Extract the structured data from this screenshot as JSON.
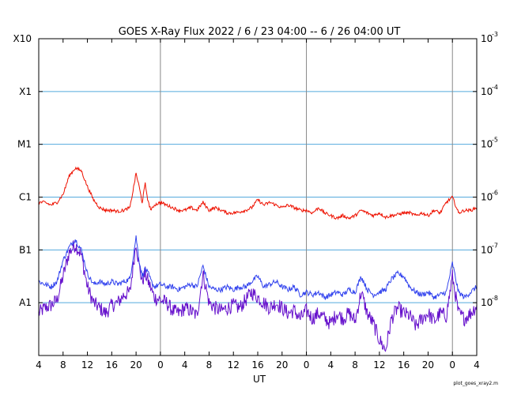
{
  "chart_data": {
    "type": "line",
    "title": "GOES X-Ray Flux   2022 /  6 / 23   04:00 --  6 / 26   04:00   UT",
    "xlabel": "UT",
    "footer": "plot_goes_xray2.m",
    "x_range_hours": [
      0,
      72
    ],
    "x_ticks": [
      {
        "h": 0,
        "label": "4"
      },
      {
        "h": 4,
        "label": "8"
      },
      {
        "h": 8,
        "label": "12"
      },
      {
        "h": 12,
        "label": "16"
      },
      {
        "h": 16,
        "label": "20"
      },
      {
        "h": 20,
        "label": "0"
      },
      {
        "h": 24,
        "label": "4"
      },
      {
        "h": 28,
        "label": "8"
      },
      {
        "h": 32,
        "label": "12"
      },
      {
        "h": 36,
        "label": "16"
      },
      {
        "h": 40,
        "label": "20"
      },
      {
        "h": 44,
        "label": "0"
      },
      {
        "h": 48,
        "label": "4"
      },
      {
        "h": 52,
        "label": "8"
      },
      {
        "h": 56,
        "label": "12"
      },
      {
        "h": 60,
        "label": "16"
      },
      {
        "h": 64,
        "label": "20"
      },
      {
        "h": 68,
        "label": "0"
      },
      {
        "h": 72,
        "label": "4"
      }
    ],
    "day_boundaries_hours": [
      20,
      44,
      68
    ],
    "y_scale": "log",
    "y_range_log10": [
      -9,
      -3
    ],
    "left_ticks": [
      {
        "log": -8,
        "label": "A1"
      },
      {
        "log": -7,
        "label": "B1"
      },
      {
        "log": -6,
        "label": "C1"
      },
      {
        "log": -5,
        "label": "M1"
      },
      {
        "log": -4,
        "label": "X1"
      },
      {
        "log": -3,
        "label": "X10"
      }
    ],
    "right_ticks": [
      {
        "log": -8,
        "base": "10",
        "exp": "-8"
      },
      {
        "log": -7,
        "base": "10",
        "exp": "-7"
      },
      {
        "log": -6,
        "base": "10",
        "exp": "-6"
      },
      {
        "log": -5,
        "base": "10",
        "exp": "-5"
      },
      {
        "log": -4,
        "base": "10",
        "exp": "-4"
      },
      {
        "log": -3,
        "base": "10",
        "exp": "-3"
      }
    ],
    "grid_levels_log10": [
      -8,
      -7,
      -6,
      -5,
      -4
    ],
    "colors": {
      "long": "#ee1100",
      "short": "#3344ee",
      "short_low": "#6611cc",
      "grid": "#55aadd",
      "day_line": "#888888"
    },
    "series": [
      {
        "key": "long",
        "points": [
          [
            0,
            -6.1
          ],
          [
            1,
            -6.1
          ],
          [
            2,
            -6.15
          ],
          [
            3,
            -6.1
          ],
          [
            4,
            -5.95
          ],
          [
            5,
            -5.6
          ],
          [
            6,
            -5.45
          ],
          [
            7,
            -5.5
          ],
          [
            8,
            -5.8
          ],
          [
            9,
            -6.05
          ],
          [
            10,
            -6.2
          ],
          [
            11,
            -6.25
          ],
          [
            12,
            -6.25
          ],
          [
            13,
            -6.27
          ],
          [
            14,
            -6.25
          ],
          [
            15,
            -6.2
          ],
          [
            16,
            -5.55
          ],
          [
            16.5,
            -5.8
          ],
          [
            17,
            -6.1
          ],
          [
            17.5,
            -5.75
          ],
          [
            18,
            -6.1
          ],
          [
            18.5,
            -6.25
          ],
          [
            19,
            -6.15
          ],
          [
            20,
            -6.1
          ],
          [
            21,
            -6.15
          ],
          [
            22,
            -6.2
          ],
          [
            23,
            -6.25
          ],
          [
            24,
            -6.25
          ],
          [
            25,
            -6.2
          ],
          [
            26,
            -6.25
          ],
          [
            27,
            -6.1
          ],
          [
            28,
            -6.25
          ],
          [
            29,
            -6.2
          ],
          [
            30,
            -6.25
          ],
          [
            31,
            -6.3
          ],
          [
            32,
            -6.3
          ],
          [
            33,
            -6.28
          ],
          [
            34,
            -6.25
          ],
          [
            35,
            -6.2
          ],
          [
            36,
            -6.05
          ],
          [
            37,
            -6.15
          ],
          [
            38,
            -6.1
          ],
          [
            39,
            -6.15
          ],
          [
            40,
            -6.2
          ],
          [
            41,
            -6.15
          ],
          [
            42,
            -6.2
          ],
          [
            43,
            -6.25
          ],
          [
            44,
            -6.25
          ],
          [
            45,
            -6.3
          ],
          [
            46,
            -6.2
          ],
          [
            47,
            -6.3
          ],
          [
            48,
            -6.35
          ],
          [
            49,
            -6.4
          ],
          [
            50,
            -6.35
          ],
          [
            51,
            -6.4
          ],
          [
            52,
            -6.35
          ],
          [
            53,
            -6.25
          ],
          [
            54,
            -6.3
          ],
          [
            55,
            -6.35
          ],
          [
            56,
            -6.3
          ],
          [
            57,
            -6.38
          ],
          [
            58,
            -6.35
          ],
          [
            59,
            -6.33
          ],
          [
            60,
            -6.3
          ],
          [
            61,
            -6.3
          ],
          [
            62,
            -6.35
          ],
          [
            63,
            -6.3
          ],
          [
            64,
            -6.35
          ],
          [
            65,
            -6.25
          ],
          [
            66,
            -6.3
          ],
          [
            67,
            -6.1
          ],
          [
            68,
            -6.0
          ],
          [
            69,
            -6.3
          ],
          [
            70,
            -6.25
          ],
          [
            71,
            -6.25
          ],
          [
            72,
            -6.2
          ]
        ]
      },
      {
        "key": "short",
        "points": [
          [
            0,
            -7.6
          ],
          [
            1,
            -7.65
          ],
          [
            2,
            -7.7
          ],
          [
            3,
            -7.6
          ],
          [
            4,
            -7.2
          ],
          [
            5,
            -6.95
          ],
          [
            6,
            -6.8
          ],
          [
            7,
            -7.0
          ],
          [
            8,
            -7.45
          ],
          [
            9,
            -7.65
          ],
          [
            10,
            -7.6
          ],
          [
            11,
            -7.65
          ],
          [
            12,
            -7.6
          ],
          [
            13,
            -7.65
          ],
          [
            14,
            -7.6
          ],
          [
            15,
            -7.55
          ],
          [
            16,
            -6.75
          ],
          [
            16.5,
            -7.2
          ],
          [
            17,
            -7.5
          ],
          [
            17.5,
            -7.35
          ],
          [
            18,
            -7.45
          ],
          [
            18.5,
            -7.6
          ],
          [
            19,
            -7.7
          ],
          [
            20,
            -7.65
          ],
          [
            21,
            -7.7
          ],
          [
            22,
            -7.7
          ],
          [
            23,
            -7.75
          ],
          [
            24,
            -7.7
          ],
          [
            25,
            -7.65
          ],
          [
            26,
            -7.7
          ],
          [
            27,
            -7.3
          ],
          [
            28,
            -7.7
          ],
          [
            29,
            -7.75
          ],
          [
            30,
            -7.75
          ],
          [
            31,
            -7.7
          ],
          [
            32,
            -7.75
          ],
          [
            33,
            -7.7
          ],
          [
            34,
            -7.7
          ],
          [
            35,
            -7.6
          ],
          [
            36,
            -7.5
          ],
          [
            37,
            -7.7
          ],
          [
            38,
            -7.65
          ],
          [
            39,
            -7.6
          ],
          [
            40,
            -7.7
          ],
          [
            41,
            -7.75
          ],
          [
            42,
            -7.7
          ],
          [
            43,
            -7.85
          ],
          [
            44,
            -7.8
          ],
          [
            45,
            -7.85
          ],
          [
            46,
            -7.8
          ],
          [
            47,
            -7.9
          ],
          [
            48,
            -7.85
          ],
          [
            49,
            -7.8
          ],
          [
            50,
            -7.85
          ],
          [
            51,
            -7.75
          ],
          [
            52,
            -7.8
          ],
          [
            53,
            -7.5
          ],
          [
            54,
            -7.75
          ],
          [
            55,
            -7.85
          ],
          [
            56,
            -7.8
          ],
          [
            57,
            -7.75
          ],
          [
            58,
            -7.55
          ],
          [
            59,
            -7.45
          ],
          [
            60,
            -7.5
          ],
          [
            61,
            -7.7
          ],
          [
            62,
            -7.8
          ],
          [
            63,
            -7.85
          ],
          [
            64,
            -7.8
          ],
          [
            65,
            -7.9
          ],
          [
            66,
            -7.85
          ],
          [
            67,
            -7.8
          ],
          [
            68,
            -7.25
          ],
          [
            69,
            -7.8
          ],
          [
            70,
            -7.9
          ],
          [
            71,
            -7.8
          ],
          [
            72,
            -7.7
          ]
        ]
      },
      {
        "key": "short_low",
        "points": [
          [
            0,
            -8.2
          ],
          [
            1,
            -8.1
          ],
          [
            2,
            -8.05
          ],
          [
            3,
            -7.95
          ],
          [
            4,
            -7.5
          ],
          [
            5,
            -7.05
          ],
          [
            6,
            -6.9
          ],
          [
            7,
            -7.1
          ],
          [
            8,
            -7.7
          ],
          [
            9,
            -8.0
          ],
          [
            10,
            -8.1
          ],
          [
            11,
            -8.2
          ],
          [
            12,
            -8.05
          ],
          [
            13,
            -8.0
          ],
          [
            14,
            -7.85
          ],
          [
            15,
            -7.8
          ],
          [
            16,
            -6.85
          ],
          [
            16.5,
            -7.3
          ],
          [
            17,
            -7.6
          ],
          [
            17.5,
            -7.45
          ],
          [
            18,
            -7.6
          ],
          [
            18.5,
            -7.75
          ],
          [
            19,
            -7.9
          ],
          [
            20,
            -7.95
          ],
          [
            21,
            -8.0
          ],
          [
            22,
            -8.15
          ],
          [
            23,
            -8.2
          ],
          [
            24,
            -8.1
          ],
          [
            25,
            -8.15
          ],
          [
            26,
            -8.25
          ],
          [
            27,
            -7.45
          ],
          [
            28,
            -8.0
          ],
          [
            29,
            -8.1
          ],
          [
            30,
            -8.15
          ],
          [
            31,
            -8.1
          ],
          [
            32,
            -8.05
          ],
          [
            33,
            -8.1
          ],
          [
            34,
            -7.95
          ],
          [
            35,
            -7.8
          ],
          [
            36,
            -7.9
          ],
          [
            37,
            -8.0
          ],
          [
            38,
            -8.1
          ],
          [
            39,
            -8.0
          ],
          [
            40,
            -8.1
          ],
          [
            41,
            -8.2
          ],
          [
            42,
            -8.15
          ],
          [
            43,
            -8.3
          ],
          [
            44,
            -8.15
          ],
          [
            45,
            -8.3
          ],
          [
            46,
            -8.2
          ],
          [
            47,
            -8.3
          ],
          [
            48,
            -8.4
          ],
          [
            49,
            -8.2
          ],
          [
            50,
            -8.3
          ],
          [
            51,
            -8.2
          ],
          [
            52,
            -8.35
          ],
          [
            53,
            -7.8
          ],
          [
            54,
            -8.2
          ],
          [
            55,
            -8.4
          ],
          [
            56,
            -8.7
          ],
          [
            57,
            -8.9
          ],
          [
            58,
            -8.3
          ],
          [
            59,
            -8.1
          ],
          [
            60,
            -8.2
          ],
          [
            61,
            -8.25
          ],
          [
            62,
            -8.45
          ],
          [
            63,
            -8.3
          ],
          [
            64,
            -8.2
          ],
          [
            65,
            -8.35
          ],
          [
            66,
            -8.2
          ],
          [
            67,
            -8.25
          ],
          [
            68,
            -7.5
          ],
          [
            69,
            -8.2
          ],
          [
            70,
            -8.3
          ],
          [
            71,
            -8.2
          ],
          [
            72,
            -8.05
          ]
        ]
      }
    ]
  }
}
